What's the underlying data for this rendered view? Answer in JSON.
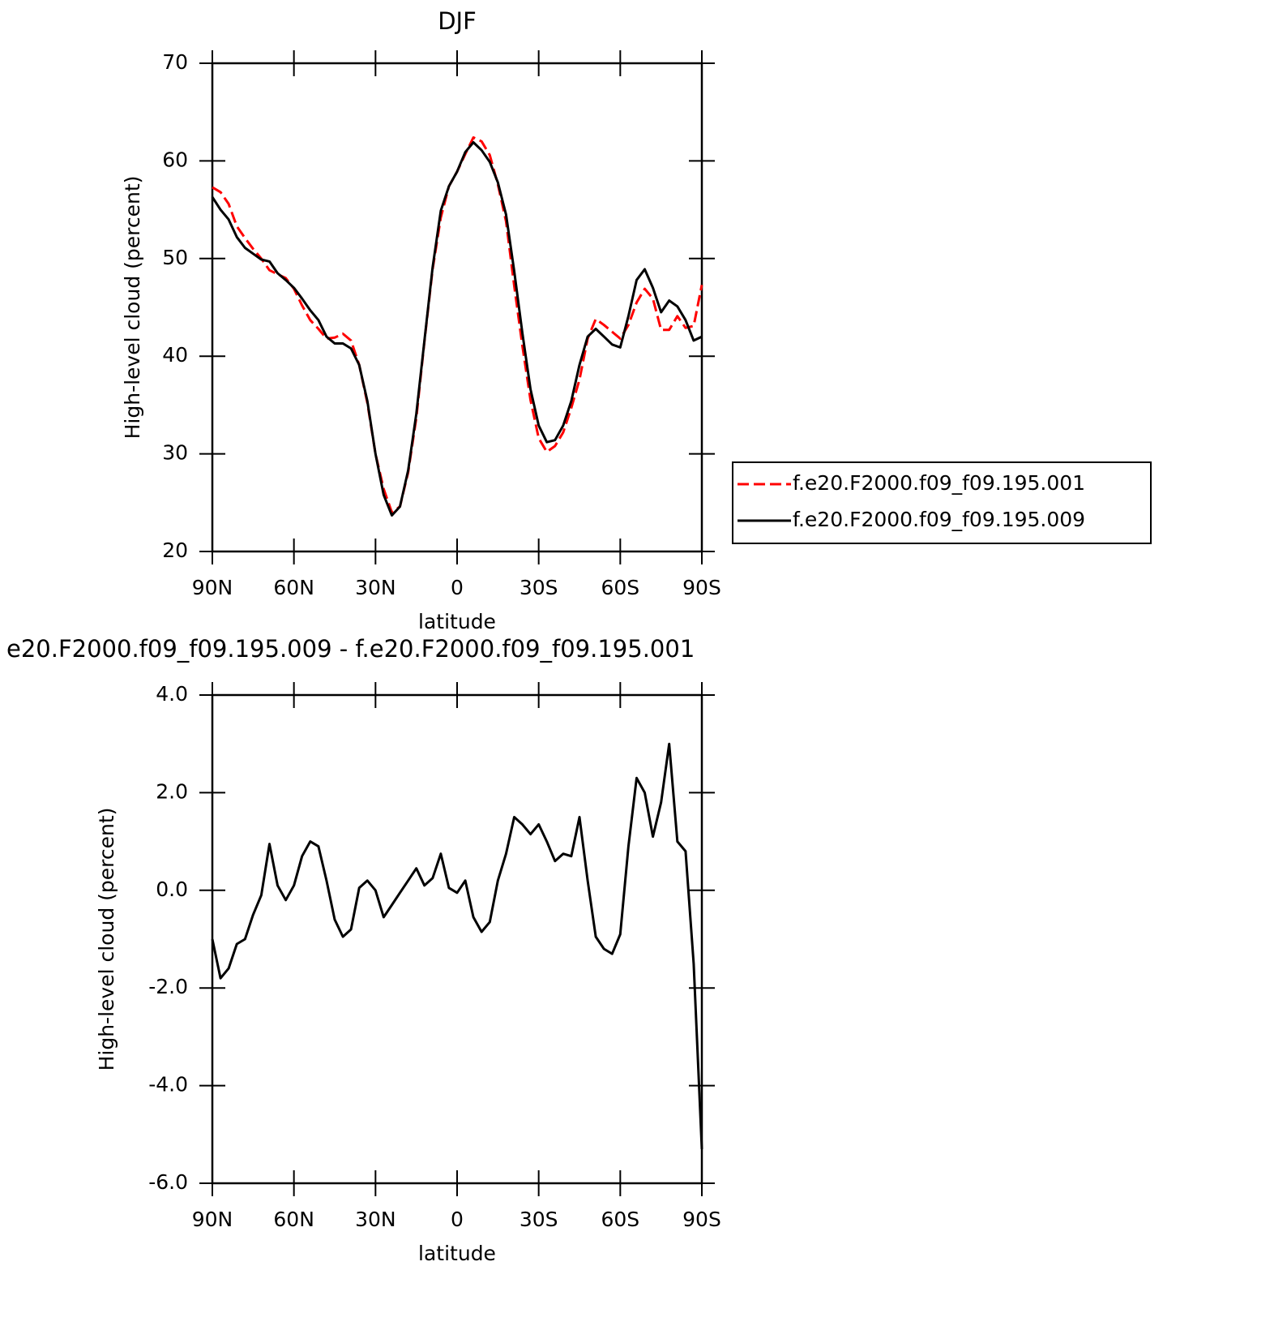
{
  "chart_data": [
    {
      "type": "line",
      "title": "DJF",
      "ylabel": "High-level cloud (percent)",
      "xlabel": "latitude",
      "xlim": [
        90,
        -90
      ],
      "xticks": [
        {
          "value": 90,
          "label": "90N"
        },
        {
          "value": 60,
          "label": "60N"
        },
        {
          "value": 30,
          "label": "30N"
        },
        0,
        {
          "value": -30,
          "label": "30S"
        },
        {
          "value": -60,
          "label": "60S"
        },
        {
          "value": -90,
          "label": "90S"
        }
      ],
      "ylim": [
        20,
        70
      ],
      "yticks": [
        20,
        30,
        40,
        50,
        60,
        70
      ],
      "x": [
        90,
        87,
        84,
        81,
        78,
        75,
        72,
        69,
        66,
        63,
        60,
        57,
        54,
        51,
        48,
        45,
        42,
        39,
        36,
        33,
        30,
        27,
        24,
        21,
        18,
        15,
        12,
        9,
        6,
        3,
        0,
        -3,
        -6,
        -9,
        -12,
        -15,
        -18,
        -21,
        -24,
        -27,
        -30,
        -33,
        -36,
        -39,
        -42,
        -45,
        -48,
        -51,
        -54,
        -57,
        -60,
        -63,
        -66,
        -69,
        -72,
        -75,
        -78,
        -81,
        -84,
        -87,
        -90
      ],
      "legend": "outside-right",
      "series": [
        {
          "name": "f.e20.F2000.f09_f09.195.001",
          "color": "#ff0000",
          "dash": true,
          "values": [
            57.3,
            56.8,
            55.6,
            53.3,
            52.1,
            51.0,
            50.0,
            48.8,
            48.4,
            48.0,
            46.9,
            45.2,
            43.7,
            42.8,
            41.8,
            41.9,
            42.3,
            41.6,
            39.1,
            35.2,
            30.0,
            26.4,
            24.0,
            24.6,
            28.1,
            33.7,
            41.5,
            48.9,
            54.2,
            57.4,
            58.9,
            60.7,
            62.4,
            62.0,
            60.6,
            57.6,
            53.8,
            47.2,
            41.1,
            35.5,
            31.6,
            30.2,
            30.8,
            32.2,
            34.7,
            37.6,
            41.8,
            43.8,
            43.2,
            42.5,
            41.8,
            43.2,
            45.5,
            46.9,
            45.9,
            42.7,
            42.7,
            44.1,
            42.9,
            43.1,
            47.3
          ]
        },
        {
          "name": "f.e20.F2000.f09_f09.195.009",
          "color": "#000000",
          "dash": false,
          "values": [
            56.3,
            55.0,
            54.0,
            52.2,
            51.1,
            50.5,
            49.9,
            49.7,
            48.5,
            47.8,
            47.0,
            45.9,
            44.7,
            43.7,
            42.0,
            41.3,
            41.3,
            40.8,
            39.1,
            35.4,
            30.0,
            25.8,
            23.7,
            24.6,
            28.3,
            34.1,
            41.6,
            49.1,
            54.9,
            57.4,
            58.9,
            60.9,
            61.9,
            61.1,
            59.9,
            57.8,
            54.5,
            48.7,
            42.4,
            36.6,
            32.9,
            31.2,
            31.4,
            32.9,
            35.4,
            39.1,
            42.0,
            42.8,
            42.0,
            41.2,
            40.9,
            44.1,
            47.8,
            48.9,
            47.0,
            44.5,
            45.7,
            45.1,
            43.7,
            41.6,
            42.0
          ]
        }
      ]
    },
    {
      "type": "line",
      "title": "e20.F2000.f09_f09.195.009 - f.e20.F2000.f09_f09.195.001",
      "ylabel": "High-level cloud (percent)",
      "xlabel": "latitude",
      "xlim": [
        90,
        -90
      ],
      "xticks": [
        {
          "value": 90,
          "label": "90N"
        },
        {
          "value": 60,
          "label": "60N"
        },
        {
          "value": 30,
          "label": "30N"
        },
        0,
        {
          "value": -30,
          "label": "30S"
        },
        {
          "value": -60,
          "label": "60S"
        },
        {
          "value": -90,
          "label": "90S"
        }
      ],
      "ylim": [
        -6,
        4
      ],
      "yticks": [
        {
          "value": -6,
          "label": "-6.0"
        },
        {
          "value": -4,
          "label": "-4.0"
        },
        {
          "value": -2,
          "label": "-2.0"
        },
        {
          "value": 0,
          "label": "0.0"
        },
        {
          "value": 2,
          "label": "2.0"
        },
        {
          "value": 4,
          "label": "4.0"
        }
      ],
      "x": [
        90,
        87,
        84,
        81,
        78,
        75,
        72,
        69,
        66,
        63,
        60,
        57,
        54,
        51,
        48,
        45,
        42,
        39,
        36,
        33,
        30,
        27,
        24,
        21,
        18,
        15,
        12,
        9,
        6,
        3,
        0,
        -3,
        -6,
        -9,
        -12,
        -15,
        -18,
        -21,
        -24,
        -27,
        -30,
        -33,
        -36,
        -39,
        -42,
        -45,
        -48,
        -51,
        -54,
        -57,
        -60,
        -63,
        -66,
        -69,
        -72,
        -75,
        -78,
        -81,
        -84,
        -87,
        -90
      ],
      "series": [
        {
          "color": "#000000",
          "dash": false,
          "values": [
            -1.0,
            -1.8,
            -1.6,
            -1.1,
            -1.0,
            -0.5,
            -0.1,
            0.95,
            0.1,
            -0.2,
            0.1,
            0.7,
            1.0,
            0.9,
            0.2,
            -0.6,
            -0.95,
            -0.8,
            0.05,
            0.2,
            0.0,
            -0.55,
            -0.3,
            -0.05,
            0.2,
            0.45,
            0.1,
            0.25,
            0.75,
            0.05,
            -0.05,
            0.2,
            -0.55,
            -0.85,
            -0.65,
            0.2,
            0.75,
            1.5,
            1.35,
            1.15,
            1.35,
            1.0,
            0.6,
            0.75,
            0.7,
            1.5,
            0.2,
            -0.95,
            -1.2,
            -1.3,
            -0.9,
            0.9,
            2.3,
            2.0,
            1.1,
            1.8,
            3.0,
            1.0,
            0.8,
            -1.5,
            -5.3
          ]
        }
      ]
    }
  ]
}
